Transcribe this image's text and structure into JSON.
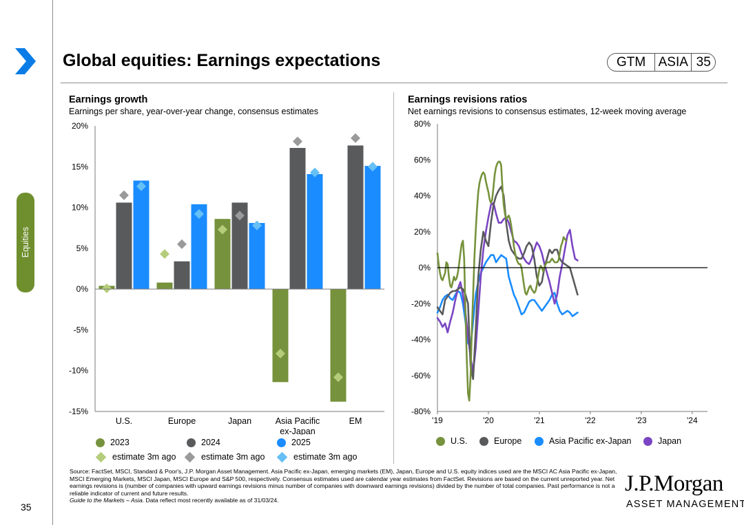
{
  "header": {
    "title": "Global equities: Earnings expectations",
    "gtm_label": "GTM",
    "region_label": "ASIA",
    "page_number": "35"
  },
  "sidebar": {
    "section_label": "Equities"
  },
  "left_panel": {
    "title": "Earnings growth",
    "subtitle": "Earnings per share, year-over-year change, consensus estimates"
  },
  "right_panel": {
    "title": "Earnings revisions ratios",
    "subtitle": "Net earnings revisions to consensus estimates, 12-week moving average"
  },
  "chart_data": [
    {
      "type": "bar",
      "title": "Earnings growth",
      "categories": [
        "U.S.",
        "Europe",
        "Japan",
        "Asia Pacific ex-Japan",
        "EM"
      ],
      "category_lines": [
        [
          "U.S."
        ],
        [
          "Europe"
        ],
        [
          "Japan"
        ],
        [
          "Asia Pacific",
          "ex-Japan"
        ],
        [
          "EM"
        ]
      ],
      "ylim": [
        -15,
        20
      ],
      "yticks": [
        20,
        15,
        10,
        5,
        0,
        -5,
        -10,
        -15
      ],
      "ytick_labels": [
        "20%",
        "15%",
        "10%",
        "5%",
        "0%",
        "-5%",
        "-10%",
        "-15%"
      ],
      "series": [
        {
          "name": "2023",
          "color": "#76923c",
          "values": [
            0.4,
            0.8,
            8.6,
            -11.4,
            -13.8
          ]
        },
        {
          "name": "2024",
          "color": "#595a5c",
          "values": [
            10.6,
            3.4,
            10.6,
            17.3,
            17.6
          ]
        },
        {
          "name": "2025",
          "color": "#1a8cff",
          "values": [
            13.3,
            10.4,
            8.1,
            14.1,
            15.1
          ]
        }
      ],
      "markers": [
        {
          "name": "estimate 3m ago",
          "color": "#b5cc7a",
          "values": [
            0.1,
            4.3,
            7.3,
            -7.9,
            -10.8
          ]
        },
        {
          "name": "estimate 3m ago",
          "color": "#9a9a9a",
          "values": [
            11.5,
            5.5,
            9.0,
            18.1,
            18.5
          ]
        },
        {
          "name": "estimate 3m ago",
          "color": "#66c0f5",
          "values": [
            12.6,
            9.2,
            7.8,
            14.3,
            15.0
          ]
        }
      ]
    },
    {
      "type": "line",
      "title": "Earnings revisions ratios",
      "x_start": 2019.0,
      "x_end": 2024.3,
      "xticks": [
        2019,
        2020,
        2021,
        2022,
        2023,
        2024
      ],
      "xtick_labels": [
        "'19",
        "'20",
        "'21",
        "'22",
        "'23",
        "'24"
      ],
      "ylim": [
        -80,
        80
      ],
      "yticks": [
        80,
        60,
        40,
        20,
        0,
        -20,
        -40,
        -60,
        -80
      ],
      "ytick_labels": [
        "80%",
        "60%",
        "40%",
        "20%",
        "0%",
        "-20%",
        "-40%",
        "-60%",
        "-80%"
      ],
      "series": [
        {
          "name": "U.S.",
          "color": "#76923c",
          "x_step": 0.025,
          "values": [
            8,
            2,
            -3,
            -6,
            -7,
            -5,
            -3,
            3,
            2,
            -5,
            -10,
            -11,
            -8,
            -5,
            -7,
            -6,
            -3,
            2,
            8,
            13,
            15,
            5,
            -25,
            -50,
            -70,
            -74,
            -60,
            -35,
            -15,
            5,
            20,
            32,
            42,
            47,
            50,
            52,
            53,
            52,
            48,
            45,
            42,
            38,
            36,
            38,
            45,
            52,
            56,
            58,
            59,
            59,
            57,
            45,
            35,
            30,
            27,
            28,
            29,
            27,
            23,
            18,
            12,
            8,
            5,
            3,
            2,
            2,
            0,
            -5,
            -10,
            -14,
            -15,
            -13,
            -11,
            -10,
            -12,
            -13,
            -14,
            -13,
            -10,
            -5,
            -1,
            1,
            0,
            -2,
            0,
            2,
            3,
            3,
            3,
            4,
            5,
            4,
            3,
            3,
            3,
            4,
            8,
            12,
            14,
            17,
            16,
            15
          ]
        },
        {
          "name": "Europe",
          "color": "#595a5c",
          "x_step": 0.05,
          "values": [
            -22,
            -24,
            -26,
            -18,
            -16,
            -14,
            -13,
            -13,
            -12,
            -11,
            -12,
            -15,
            -20,
            -55,
            -62,
            -35,
            -5,
            10,
            20,
            15,
            12,
            25,
            35,
            40,
            43,
            45,
            40,
            25,
            15,
            10,
            8,
            6,
            5,
            5,
            8,
            12,
            14,
            12,
            5,
            -5,
            -10,
            -8,
            0,
            5,
            10,
            8,
            10,
            10,
            5,
            3,
            2,
            1,
            0,
            -5,
            -10,
            -15
          ]
        },
        {
          "name": "Asia Pacific ex-Japan",
          "color": "#1a8cff",
          "x_step": 0.05,
          "values": [
            -25,
            -22,
            -18,
            -16,
            -15,
            -17,
            -18,
            -15,
            -13,
            -14,
            -20,
            -30,
            -42,
            -44,
            -30,
            -15,
            -8,
            -3,
            0,
            3,
            5,
            7,
            7,
            3,
            5,
            7,
            6,
            5,
            -5,
            -10,
            -15,
            -18,
            -22,
            -26,
            -25,
            -22,
            -19,
            -18,
            -18,
            -20,
            -22,
            -24,
            -22,
            -20,
            -18,
            -15,
            -14,
            -20,
            -24,
            -26,
            -25,
            -24,
            -25,
            -27,
            -26,
            -25
          ]
        },
        {
          "name": "Japan",
          "color": "#7a45c3",
          "x_step": 0.05,
          "values": [
            -28,
            -30,
            -33,
            -31,
            -36,
            -30,
            -25,
            -18,
            -12,
            -8,
            -15,
            -25,
            -38,
            -50,
            -58,
            -45,
            -25,
            -5,
            10,
            20,
            28,
            35,
            36,
            30,
            25,
            25,
            27,
            28,
            25,
            20,
            15,
            14,
            12,
            8,
            5,
            3,
            2,
            5,
            10,
            14,
            12,
            8,
            2,
            -3,
            -8,
            -14,
            -20,
            -15,
            -5,
            2,
            10,
            18,
            21,
            12,
            5,
            4
          ]
        }
      ]
    }
  ],
  "legend_left": {
    "row1": [
      "2023",
      "2024",
      "2025"
    ],
    "row2": [
      "estimate 3m ago",
      "estimate 3m ago",
      "estimate 3m ago"
    ]
  },
  "legend_right": [
    "U.S.",
    "Europe",
    "Asia Pacific ex-Japan",
    "Japan"
  ],
  "footnote": {
    "source": "Source: FactSet, MSCI, Standard & Poor's, J.P. Morgan Asset Management. Asia Pacific ex-Japan, emerging markets (EM), Japan, Europe and U.S. equity indices used are the MSCI AC Asia Pacific ex-Japan, MSCI Emerging Markets, MSCI Japan, MSCI Europe and S&P 500, respectively. Consensus estimates used are calendar year estimates from FactSet. Revisions are based on the current unreported year. Net earnings revisions is (number of companies with upward earnings revisions minus number of companies with downward earnings revisions) divided by the number of total companies. Past performance is not a reliable indicator of current and future results.",
    "guide_italic": "Guide to the Markets – Asia.",
    "guide_rest": " Data reflect most recently available as of 31/03/24."
  },
  "footer": {
    "page_number": "35",
    "brand_name": "J.P.Morgan",
    "brand_sub": "ASSET MANAGEMENT"
  },
  "colors": {
    "us_green": "#76923c",
    "europe_grey": "#595a5c",
    "asia_blue": "#1a8cff",
    "japan_purple": "#7a45c3",
    "chevron_blue": "#0a7ce6",
    "tab_green": "#6f8f2e"
  }
}
